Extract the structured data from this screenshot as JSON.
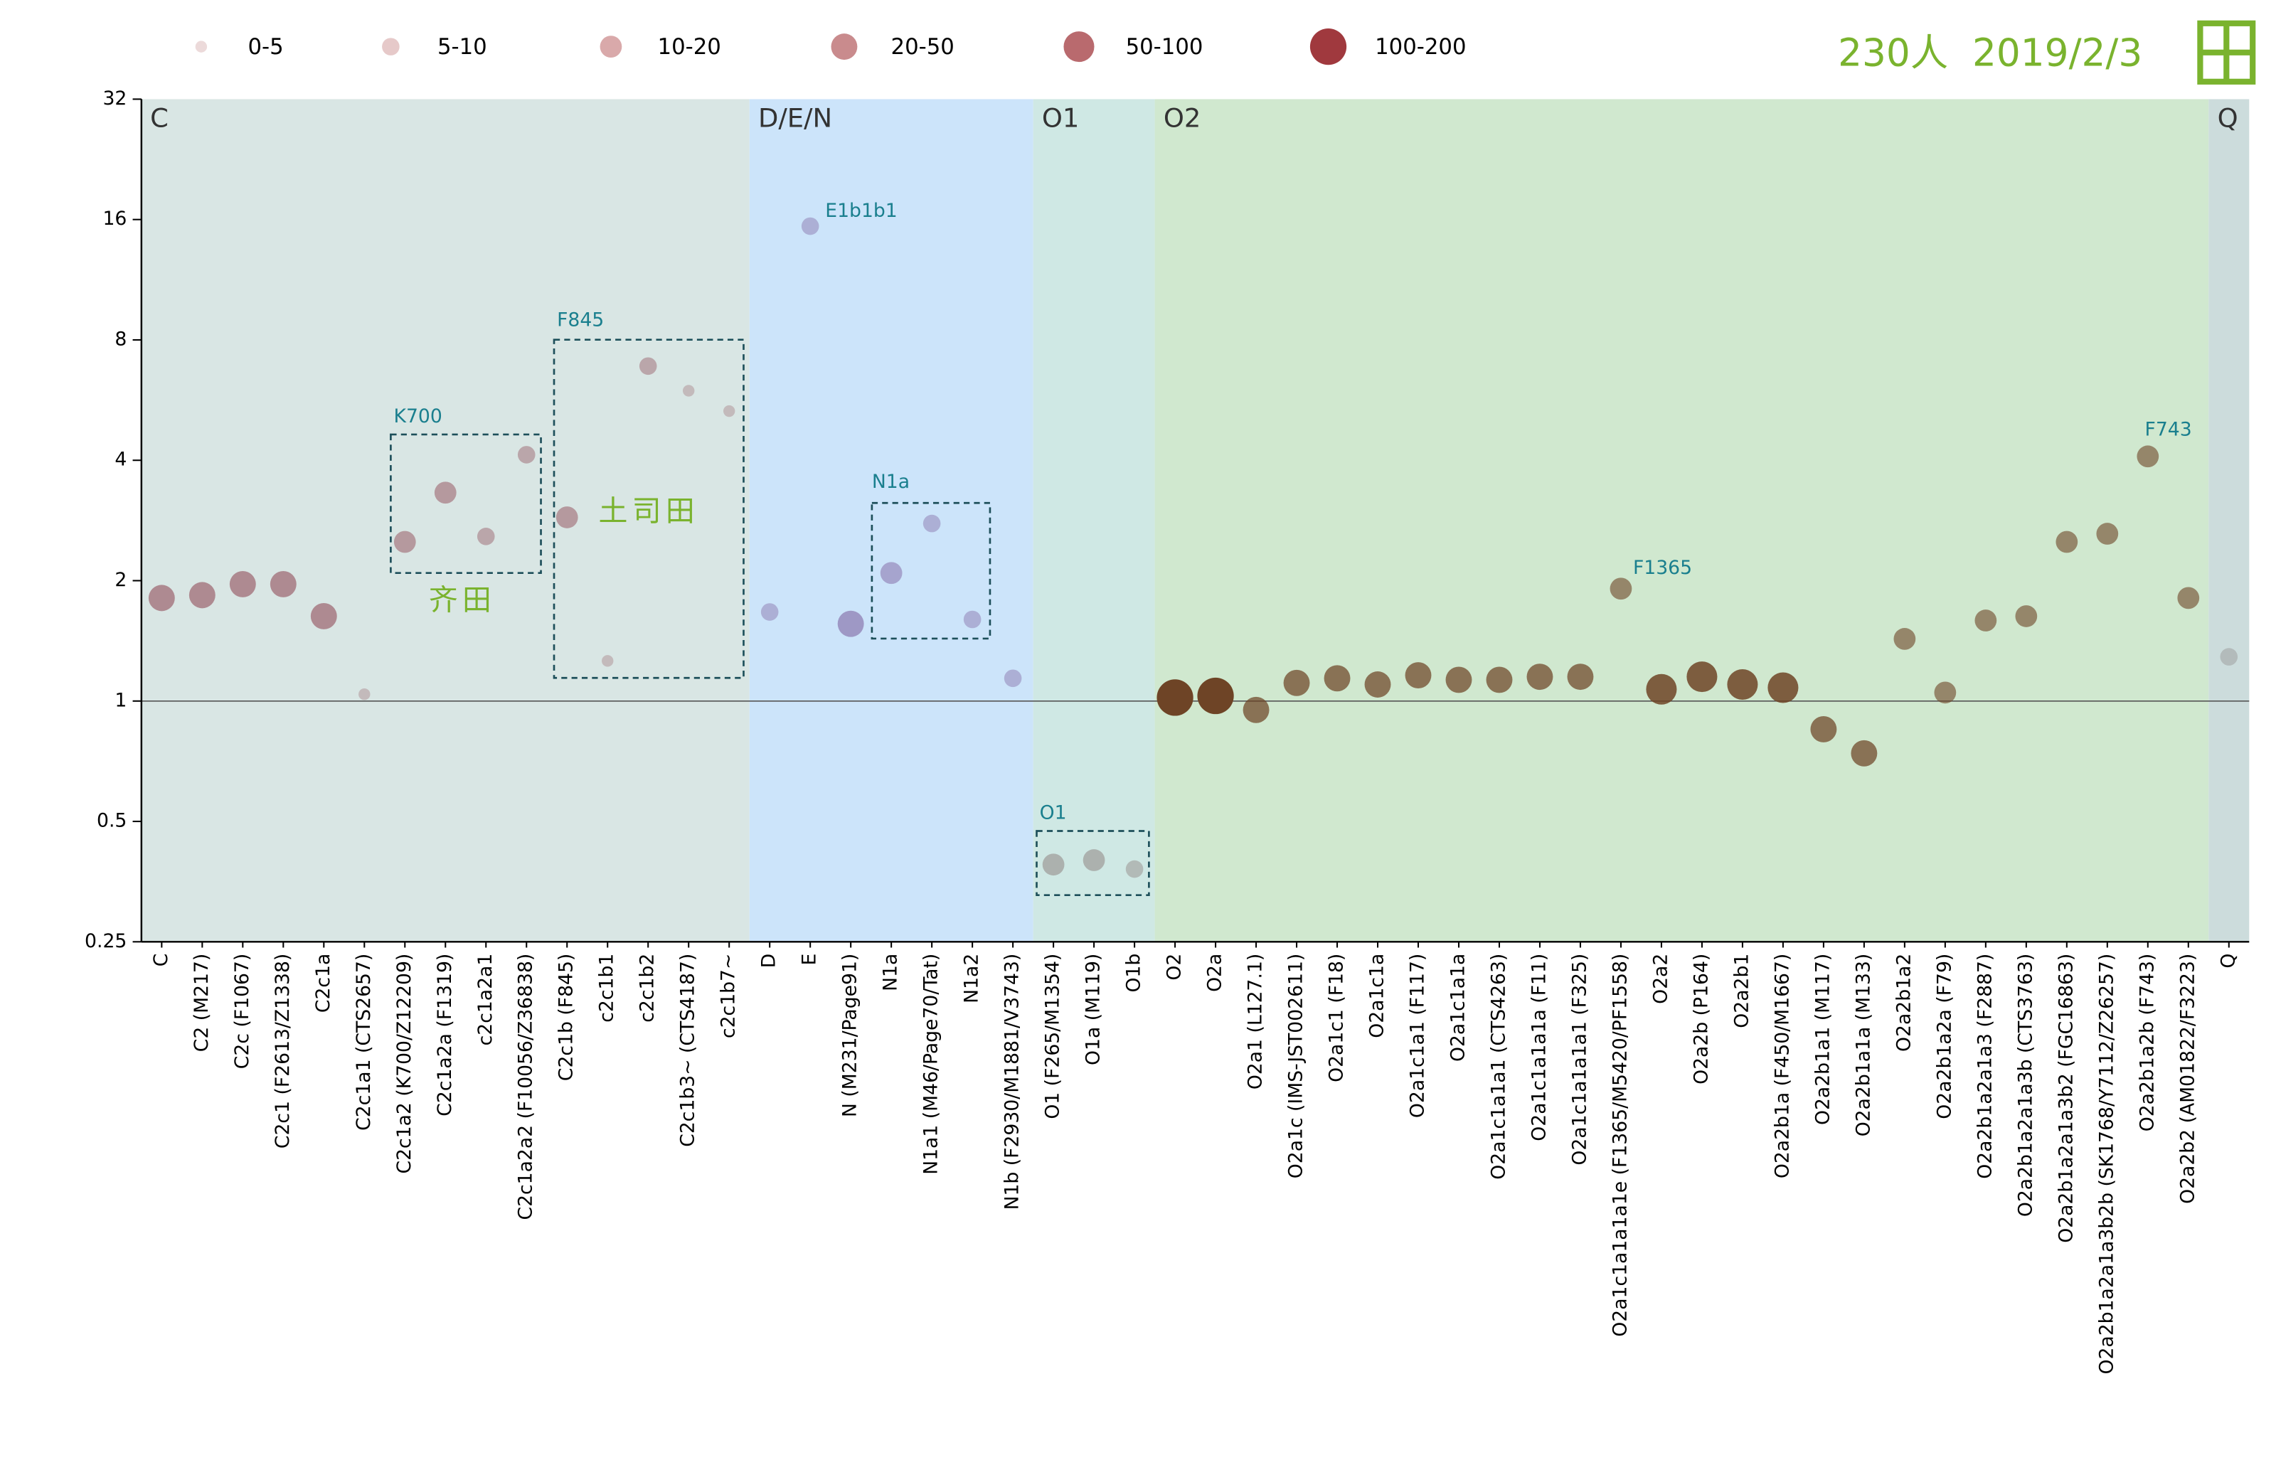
{
  "chart_data": {
    "type": "bubble",
    "title": "230人  2019/2/3",
    "log_scale": true,
    "ylim": [
      0.25,
      32
    ],
    "yticks": [
      0.25,
      0.5,
      1,
      2,
      4,
      8,
      16,
      32
    ],
    "reference_line": 1,
    "size_bins": [
      0,
      5,
      10,
      20,
      50,
      100,
      200
    ],
    "size_legend": [
      "0-5",
      "5-10",
      "10-20",
      "20-50",
      "50-100",
      "100-200"
    ],
    "size_legend_colors": [
      "#ecdada",
      "#e6c9c9",
      "#d9a9aa",
      "#c98b8d",
      "#b96a6e",
      "#a0393e"
    ],
    "series": [
      {
        "name": "C",
        "color": "#9c6670",
        "background": "#d9e6e4",
        "categories": [
          "C",
          "C2 (M217)",
          "C2c (F1067)",
          "C2c1 (F2613/Z1338)",
          "C2c1a",
          "C2c1a1 (CTS2657)",
          "C2c1a2 (K700/Z12209)",
          "C2c1a2a (F1319)",
          "c2c1a2a1",
          "C2c1a2a2 (F10056/Z36838)",
          "C2c1b (F845)",
          "c2c1b1",
          "c2c1b2",
          "C2c1b3~ (CTS4187)",
          "c2c1b7~"
        ],
        "values": [
          1.81,
          1.84,
          1.96,
          1.96,
          1.63,
          1.04,
          2.5,
          3.32,
          2.58,
          4.13,
          2.88,
          1.26,
          6.88,
          5.97,
          5.31
        ],
        "sizes": [
          30,
          30,
          30,
          30,
          30,
          4,
          15,
          18,
          8,
          8,
          15,
          3,
          8,
          3,
          3
        ]
      },
      {
        "name": "D/E/N",
        "color": "#8c7ab0",
        "background": "#cce4fa",
        "categories": [
          "D",
          "E",
          "N (M231/Page91)",
          "N1a",
          "N1a1 (M46/Page70/Tat)",
          "N1a2",
          "N1b (F2930/M1881/V3743)"
        ],
        "values": [
          1.67,
          15.4,
          1.56,
          2.09,
          2.78,
          1.6,
          1.14
        ],
        "sizes": [
          8,
          8,
          30,
          15,
          8,
          8,
          8
        ]
      },
      {
        "name": "O1",
        "color": "#958c8a",
        "background": "#cfe8e4",
        "categories": [
          "O1 (F265/M1354)",
          "O1a (M119)",
          "O1b"
        ],
        "values": [
          0.39,
          0.4,
          0.38
        ],
        "sizes": [
          12,
          12,
          8
        ]
      },
      {
        "name": "O2",
        "color": "#6e4426",
        "background": "#d0e8cf",
        "categories": [
          "O2",
          "O2a",
          "O2a1 (L127.1)",
          "O2a1c (IMS-JST002611)",
          "O2a1c1 (F18)",
          "O2a1c1a",
          "O2a1c1a1 (F117)",
          "O2a1c1a1a",
          "O2a1c1a1a1 (CTS4263)",
          "O2a1c1a1a1a (F11)",
          "O2a1c1a1a1a1 (F325)",
          "O2a1c1a1a1a1e (F1365/M5420/PF1558)",
          "O2a2",
          "O2a2b (P164)",
          "O2a2b1",
          "O2a2b1a (F450/M1667)",
          "O2a2b1a1 (M117)",
          "O2a2b1a1a (M133)",
          "O2a2b1a2",
          "O2a2b1a2a (F79)",
          "O2a2b1a2a1a3 (F2887)",
          "O2a2b1a2a1a3b (CTS3763)",
          "O2a2b1a2a1a3b2 (FGC16863)",
          "O2a2b1a2a1a3b2b (SK1768/Y7112/Z26257)",
          "O2a2b1a2b (F743)",
          "O2a2b2 (AM01822/F3223)"
        ],
        "values": [
          1.02,
          1.03,
          0.95,
          1.11,
          1.14,
          1.1,
          1.16,
          1.13,
          1.13,
          1.15,
          1.15,
          1.91,
          1.07,
          1.15,
          1.1,
          1.08,
          0.85,
          0.74,
          1.43,
          1.05,
          1.59,
          1.63,
          2.5,
          2.62,
          4.09,
          1.81
        ],
        "sizes": [
          150,
          150,
          25,
          25,
          25,
          25,
          25,
          25,
          25,
          25,
          25,
          15,
          70,
          70,
          60,
          70,
          25,
          25,
          20,
          20,
          20,
          12,
          12,
          12,
          12,
          12
        ]
      },
      {
        "name": "Q",
        "color": "#9a9a9a",
        "background": "#ccdcdc",
        "categories": [
          "Q"
        ],
        "values": [
          1.29
        ],
        "sizes": [
          8
        ]
      }
    ],
    "point_annotations": [
      "E1b1b1",
      "F1365",
      "F743"
    ],
    "boxes": [
      {
        "label": "K700",
        "note": "齐田"
      },
      {
        "label": "F845",
        "note": "土司田"
      },
      {
        "label": "N1a"
      },
      {
        "label": "O1"
      }
    ]
  }
}
